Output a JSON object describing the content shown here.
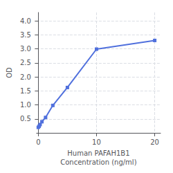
{
  "chart_data": {
    "type": "line",
    "x": [
      0,
      0.156,
      0.313,
      0.625,
      1.25,
      2.5,
      5,
      10,
      20
    ],
    "values": [
      0.197,
      0.238,
      0.298,
      0.398,
      0.55,
      0.98,
      1.62,
      2.99,
      3.3
    ],
    "marker": "square",
    "xlabel": "Human PAFAH1B1\nConcentration (ng/ml)",
    "ylabel": "OD",
    "xlim": [
      -0.3,
      21
    ],
    "ylim": [
      0,
      4.3
    ],
    "xticks": [
      0,
      10,
      20
    ],
    "yticks": [
      0.5,
      {
        "value": 1,
        "label": "1.0"
      },
      1.5,
      {
        "value": 2,
        "label": "2.0"
      },
      2.5,
      {
        "value": 3,
        "label": "3.0"
      },
      3.5,
      {
        "value": 4,
        "label": "4.0"
      }
    ],
    "grid": true
  }
}
